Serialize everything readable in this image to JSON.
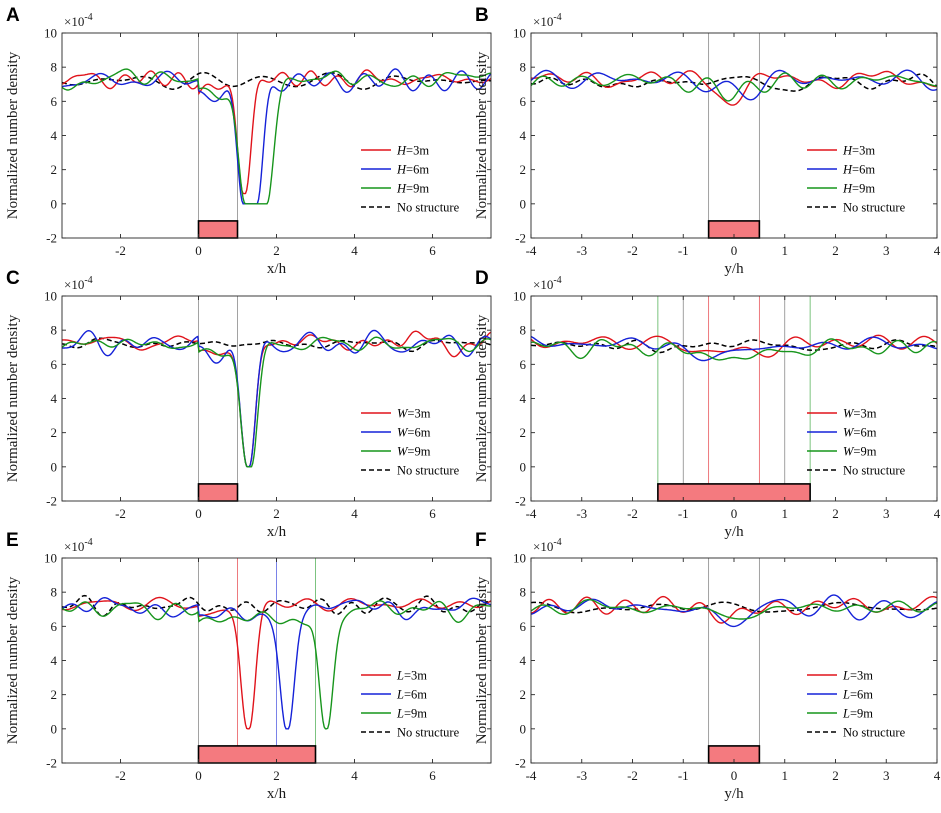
{
  "figure": {
    "ylabel": "Normalized number density",
    "exponent": {
      "base": "×10",
      "power": "-4"
    },
    "legend_placement": "bottom-right"
  },
  "colors": {
    "red": "#e0131b",
    "blue": "#1522d8",
    "green": "#17951c",
    "black": "#000000",
    "block": "#f47a7f"
  },
  "chart_data": [
    {
      "panel": "A",
      "type": "line",
      "xlabel": "x/h",
      "xlim": [
        -3.5,
        7.5
      ],
      "ylim": [
        -2,
        10
      ],
      "xticks": [
        "-2",
        "0",
        "2",
        "4",
        "6"
      ],
      "yticks": [
        "-2",
        "0",
        "2",
        "4",
        "6",
        "8",
        "10"
      ],
      "vlines": [
        {
          "x": 0,
          "color": "gray"
        },
        {
          "x": 1,
          "color": "gray"
        }
      ],
      "block": {
        "x": [
          0,
          1
        ],
        "y": [
          -2,
          -1
        ]
      },
      "dips": [
        {
          "series": "red",
          "x0": 1.15,
          "x1": 1.2,
          "min": 0.6,
          "w": 0.2
        },
        {
          "series": "blue",
          "x0": 1.15,
          "x1": 1.5,
          "min": 0.0,
          "w": 0.22
        },
        {
          "series": "green",
          "x0": 1.2,
          "x1": 1.75,
          "min": 0.0,
          "w": 0.25
        }
      ],
      "series": [
        {
          "name": "H=3m",
          "var": "H",
          "val": "=3m",
          "color": "red",
          "base": 7.3
        },
        {
          "name": "H=6m",
          "var": "H",
          "val": "=6m",
          "color": "blue",
          "base": 7.2
        },
        {
          "name": "H=9m",
          "var": "H",
          "val": "=9m",
          "color": "green",
          "base": 7.3
        },
        {
          "name": "No structure",
          "color": "black",
          "dash": true,
          "base": 7.2
        }
      ]
    },
    {
      "panel": "B",
      "type": "line",
      "xlabel": "y/h",
      "xlim": [
        -4,
        4
      ],
      "ylim": [
        -2,
        10
      ],
      "xticks": [
        "-4",
        "-3",
        "-2",
        "-1",
        "0",
        "1",
        "2",
        "3",
        "4"
      ],
      "yticks": [
        "-2",
        "0",
        "2",
        "4",
        "6",
        "8",
        "10"
      ],
      "vlines": [
        {
          "x": -0.5,
          "color": "gray"
        },
        {
          "x": 0.5,
          "color": "gray"
        }
      ],
      "block": {
        "x": [
          -0.5,
          0.5
        ],
        "y": [
          -2,
          -1
        ]
      },
      "dips": [],
      "sags": [
        {
          "x0": -0.5,
          "x1": 0.5,
          "depth": 0.9
        }
      ],
      "series": [
        {
          "name": "H=3m",
          "var": "H",
          "val": "=3m",
          "color": "red",
          "base": 7.3
        },
        {
          "name": "H=6m",
          "var": "H",
          "val": "=6m",
          "color": "blue",
          "base": 7.3
        },
        {
          "name": "H=9m",
          "var": "H",
          "val": "=9m",
          "color": "green",
          "base": 7.2
        },
        {
          "name": "No structure",
          "color": "black",
          "dash": true,
          "base": 7.1
        }
      ]
    },
    {
      "panel": "C",
      "type": "line",
      "xlabel": "x/h",
      "xlim": [
        -3.5,
        7.5
      ],
      "ylim": [
        -2,
        10
      ],
      "xticks": [
        "-2",
        "0",
        "2",
        "4",
        "6"
      ],
      "yticks": [
        "-2",
        "0",
        "2",
        "4",
        "6",
        "8",
        "10"
      ],
      "vlines": [
        {
          "x": 0,
          "color": "gray"
        },
        {
          "x": 1,
          "color": "gray"
        }
      ],
      "block": {
        "x": [
          0,
          1
        ],
        "y": [
          -2,
          -1
        ]
      },
      "dips": [
        {
          "series": "red",
          "x0": 1.25,
          "x1": 1.3,
          "min": 0.0,
          "w": 0.22
        },
        {
          "series": "blue",
          "x0": 1.25,
          "x1": 1.3,
          "min": 0.0,
          "w": 0.22
        },
        {
          "series": "green",
          "x0": 1.25,
          "x1": 1.35,
          "min": 0.0,
          "w": 0.23
        }
      ],
      "series": [
        {
          "name": "W=3m",
          "var": "W",
          "val": "=3m",
          "color": "red",
          "base": 7.3
        },
        {
          "name": "W=6m",
          "var": "W",
          "val": "=6m",
          "color": "blue",
          "base": 7.2
        },
        {
          "name": "W=9m",
          "var": "W",
          "val": "=9m",
          "color": "green",
          "base": 7.2
        },
        {
          "name": "No structure",
          "color": "black",
          "dash": true,
          "base": 7.2
        }
      ]
    },
    {
      "panel": "D",
      "type": "line",
      "xlabel": "y/h",
      "xlim": [
        -4,
        4
      ],
      "ylim": [
        -2,
        10
      ],
      "xticks": [
        "-4",
        "-3",
        "-2",
        "-1",
        "0",
        "1",
        "2",
        "3",
        "4"
      ],
      "yticks": [
        "-2",
        "0",
        "2",
        "4",
        "6",
        "8",
        "10"
      ],
      "vlines": [
        {
          "x": -1.5,
          "color": "green"
        },
        {
          "x": -1,
          "color": "gray"
        },
        {
          "x": -0.5,
          "color": "red"
        },
        {
          "x": 0.5,
          "color": "red"
        },
        {
          "x": 1,
          "color": "gray"
        },
        {
          "x": 1.5,
          "color": "green"
        }
      ],
      "block": {
        "x": [
          -1.5,
          1.5
        ],
        "y": [
          -2,
          -1
        ]
      },
      "dips": [],
      "sags": [
        {
          "x0": -1.5,
          "x1": 1.5,
          "depth": 0.6
        }
      ],
      "series": [
        {
          "name": "W=3m",
          "var": "W",
          "val": "=3m",
          "color": "red",
          "base": 7.3
        },
        {
          "name": "W=6m",
          "var": "W",
          "val": "=6m",
          "color": "blue",
          "base": 7.2
        },
        {
          "name": "W=9m",
          "var": "W",
          "val": "=9m",
          "color": "green",
          "base": 7.0
        },
        {
          "name": "No structure",
          "color": "black",
          "dash": true,
          "base": 7.1
        }
      ]
    },
    {
      "panel": "E",
      "type": "line",
      "xlabel": "x/h",
      "xlim": [
        -3.5,
        7.5
      ],
      "ylim": [
        -2,
        10
      ],
      "xticks": [
        "-2",
        "0",
        "2",
        "4",
        "6"
      ],
      "yticks": [
        "-2",
        "0",
        "2",
        "4",
        "6",
        "8",
        "10"
      ],
      "vlines": [
        {
          "x": 0,
          "color": "gray"
        },
        {
          "x": 1,
          "color": "red"
        },
        {
          "x": 2,
          "color": "blue"
        },
        {
          "x": 3,
          "color": "green"
        }
      ],
      "block": {
        "x": [
          0,
          3
        ],
        "y": [
          -2,
          -1
        ]
      },
      "dips": [
        {
          "series": "red",
          "x0": 1.25,
          "x1": 1.3,
          "min": 0.0,
          "w": 0.22
        },
        {
          "series": "blue",
          "x0": 2.25,
          "x1": 2.3,
          "min": 0.0,
          "w": 0.22
        },
        {
          "series": "green",
          "x0": 3.25,
          "x1": 3.3,
          "min": 0.0,
          "w": 0.22
        }
      ],
      "series": [
        {
          "name": "L=3m",
          "var": "L",
          "val": "=3m",
          "color": "red",
          "base": 7.3
        },
        {
          "name": "L=6m",
          "var": "L",
          "val": "=6m",
          "color": "blue",
          "base": 7.1
        },
        {
          "name": "L=9m",
          "var": "L",
          "val": "=9m",
          "color": "green",
          "base": 7.0
        },
        {
          "name": "No structure",
          "color": "black",
          "dash": true,
          "base": 7.2
        }
      ]
    },
    {
      "panel": "F",
      "type": "line",
      "xlabel": "y/h",
      "xlim": [
        -4,
        4
      ],
      "ylim": [
        -2,
        10
      ],
      "xticks": [
        "-4",
        "-3",
        "-2",
        "-1",
        "0",
        "1",
        "2",
        "3",
        "4"
      ],
      "yticks": [
        "-2",
        "0",
        "2",
        "4",
        "6",
        "8",
        "10"
      ],
      "vlines": [
        {
          "x": -0.5,
          "color": "gray"
        },
        {
          "x": 0.5,
          "color": "gray"
        }
      ],
      "block": {
        "x": [
          -0.5,
          0.5
        ],
        "y": [
          -2,
          -1
        ]
      },
      "dips": [],
      "sags": [
        {
          "x0": -0.5,
          "x1": 0.5,
          "depth": 0.7
        }
      ],
      "series": [
        {
          "name": "L=3m",
          "var": "L",
          "val": "=3m",
          "color": "red",
          "base": 7.2
        },
        {
          "name": "L=6m",
          "var": "L",
          "val": "=6m",
          "color": "blue",
          "base": 7.1
        },
        {
          "name": "L=9m",
          "var": "L",
          "val": "=9m",
          "color": "green",
          "base": 7.1
        },
        {
          "name": "No structure",
          "color": "black",
          "dash": true,
          "base": 7.1
        }
      ]
    }
  ]
}
